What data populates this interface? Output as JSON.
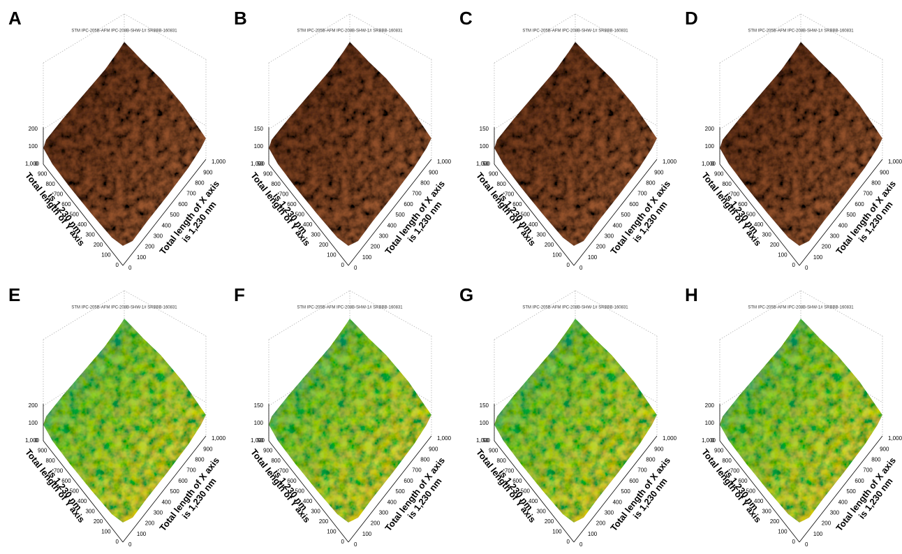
{
  "figure": {
    "header": "STM IPC-205B-AFM IPC-208B-SHW-1# SRBBB-160831",
    "xy_ticks": [
      "0",
      "100",
      "200",
      "300",
      "400",
      "500",
      "600",
      "700",
      "800",
      "900",
      "1,000"
    ],
    "x_label": [
      "Total length of X axis",
      "is 1,230 nm"
    ],
    "y_label": [
      "Total length of Y axis",
      "is 1,230 nm"
    ],
    "panels": [
      {
        "label": "A",
        "z_ticks": [
          "0",
          "100",
          "200"
        ],
        "colormap": "copper"
      },
      {
        "label": "B",
        "z_ticks": [
          "50",
          "100",
          "150"
        ],
        "colormap": "copper"
      },
      {
        "label": "C",
        "z_ticks": [
          "50",
          "100",
          "150"
        ],
        "colormap": "copper"
      },
      {
        "label": "D",
        "z_ticks": [
          "0",
          "100",
          "200"
        ],
        "colormap": "copper"
      },
      {
        "label": "E",
        "z_ticks": [
          "0",
          "100",
          "200"
        ],
        "colormap": "jet"
      },
      {
        "label": "F",
        "z_ticks": [
          "50",
          "100",
          "150"
        ],
        "colormap": "jet"
      },
      {
        "label": "G",
        "z_ticks": [
          "50",
          "100",
          "150"
        ],
        "colormap": "jet"
      },
      {
        "label": "H",
        "z_ticks": [
          "0",
          "100",
          "200"
        ],
        "colormap": "jet"
      }
    ]
  }
}
